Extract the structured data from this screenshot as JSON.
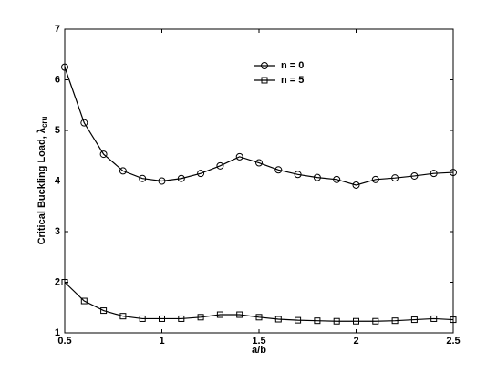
{
  "chart_data": {
    "type": "line",
    "xlabel": "a/b",
    "ylabel": {
      "text": "Critical Buckling Load, λ",
      "subscript": "cru"
    },
    "x": [
      0.5,
      0.6,
      0.7,
      0.8,
      0.9,
      1.0,
      1.1,
      1.2,
      1.3,
      1.4,
      1.5,
      1.6,
      1.7,
      1.8,
      1.9,
      2.0,
      2.1,
      2.2,
      2.3,
      2.4,
      2.5
    ],
    "series": [
      {
        "name": "n = 0",
        "color": "#000000",
        "marker": "circle",
        "values": [
          6.25,
          5.15,
          4.53,
          4.2,
          4.05,
          4.0,
          4.05,
          4.15,
          4.3,
          4.48,
          4.36,
          4.22,
          4.13,
          4.07,
          4.03,
          3.92,
          4.03,
          4.06,
          4.1,
          4.15,
          4.17
        ]
      },
      {
        "name": "n = 5",
        "color": "#000000",
        "marker": "square",
        "values": [
          2.0,
          1.63,
          1.44,
          1.33,
          1.28,
          1.28,
          1.28,
          1.31,
          1.36,
          1.36,
          1.31,
          1.27,
          1.25,
          1.24,
          1.23,
          1.23,
          1.23,
          1.24,
          1.26,
          1.28,
          1.26
        ]
      }
    ],
    "xlim": [
      0.5,
      2.5
    ],
    "xticks": [
      0.5,
      1,
      1.5,
      2,
      2.5
    ],
    "ylim": [
      1,
      7
    ],
    "yticks": [
      1,
      2,
      3,
      4,
      5,
      6,
      7
    ],
    "grid": false,
    "legend": "upper-center"
  }
}
